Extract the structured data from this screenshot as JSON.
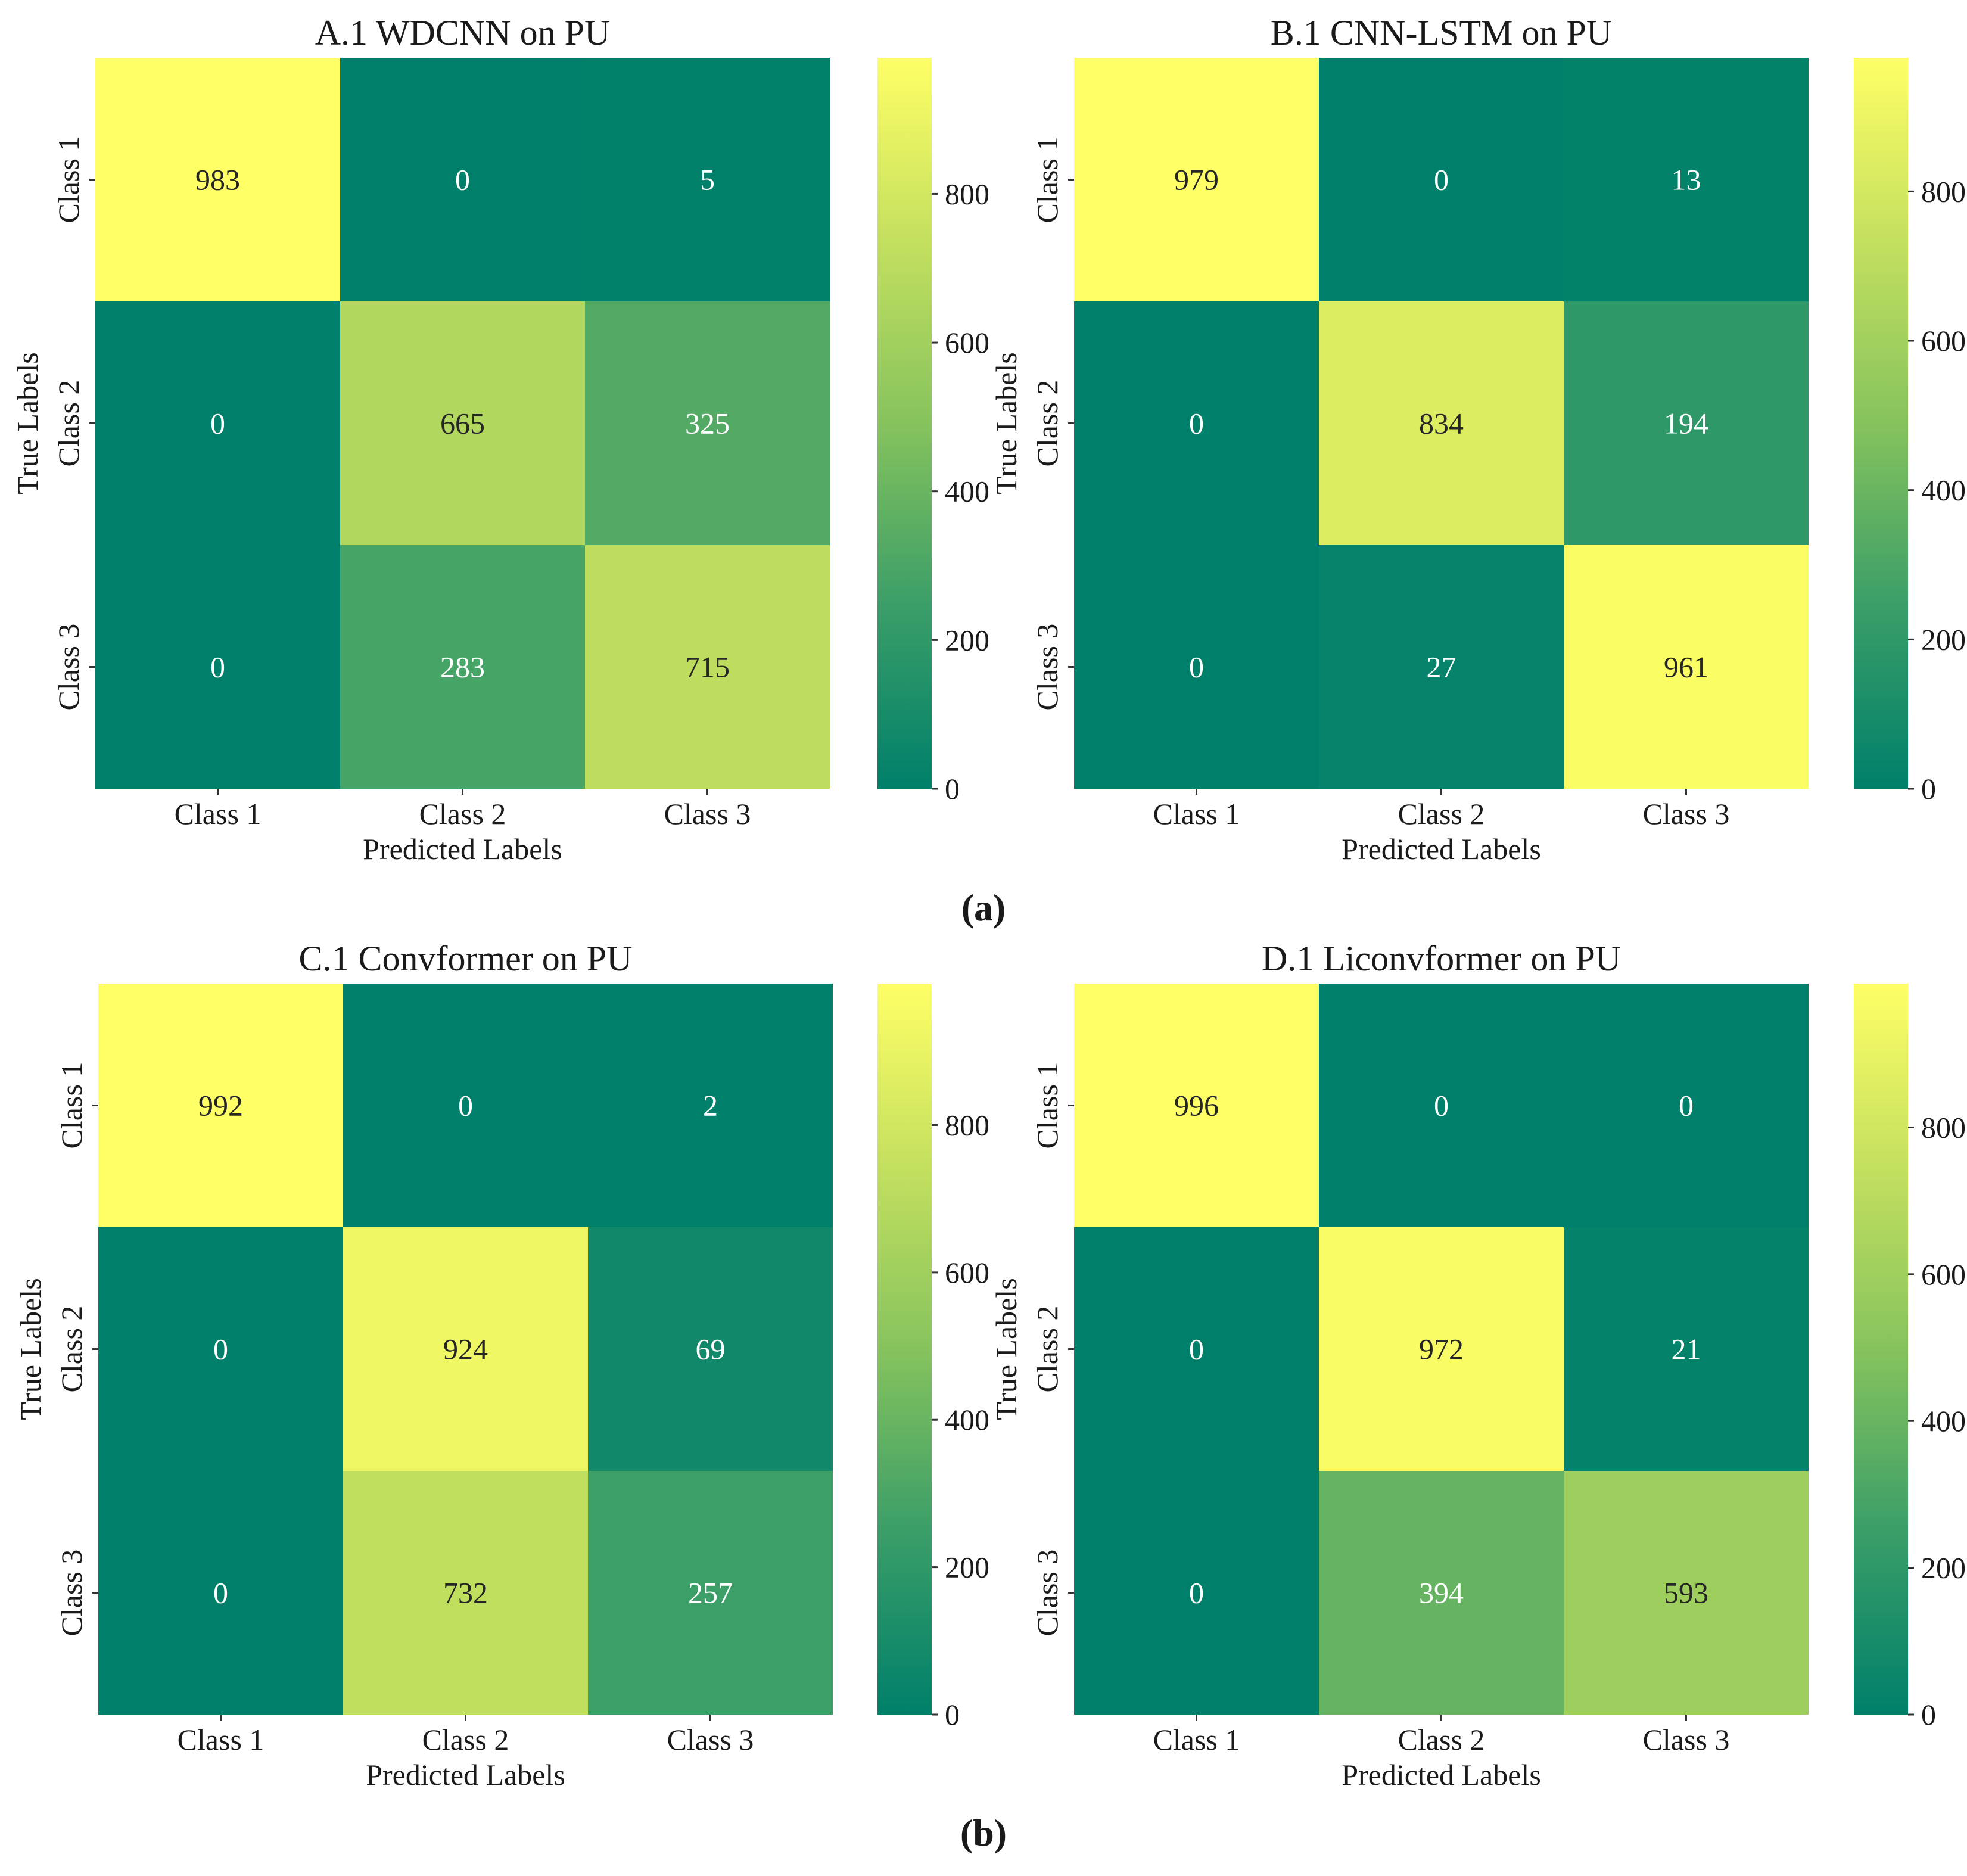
{
  "figure": {
    "panel_labels": [
      "(a)",
      "(b)"
    ]
  },
  "chart_data": [
    {
      "type": "heatmap",
      "title": "A.1 WDCNN on PU",
      "xlabel": "Predicted Labels",
      "ylabel": "True Labels",
      "x_categories": [
        "Class 1",
        "Class 2",
        "Class 3"
      ],
      "y_categories": [
        "Class 1",
        "Class 2",
        "Class 3"
      ],
      "matrix": [
        [
          983,
          0,
          5
        ],
        [
          0,
          665,
          325
        ],
        [
          0,
          283,
          715
        ]
      ],
      "colorbar": {
        "range": [
          0,
          983
        ],
        "ticks": [
          0,
          200,
          400,
          600,
          800
        ]
      },
      "colormap": [
        "#00806a",
        "#3a9e68",
        "#86c35d",
        "#c4e05f",
        "#ffff66"
      ]
    },
    {
      "type": "heatmap",
      "title": "B.1 CNN-LSTM on PU",
      "xlabel": "Predicted Labels",
      "ylabel": "True Labels",
      "x_categories": [
        "Class 1",
        "Class 2",
        "Class 3"
      ],
      "y_categories": [
        "Class 1",
        "Class 2",
        "Class 3"
      ],
      "matrix": [
        [
          979,
          0,
          13
        ],
        [
          0,
          834,
          194
        ],
        [
          0,
          27,
          961
        ]
      ],
      "colorbar": {
        "range": [
          0,
          979
        ],
        "ticks": [
          0,
          200,
          400,
          600,
          800
        ]
      },
      "colormap": [
        "#00806a",
        "#3a9e68",
        "#86c35d",
        "#c4e05f",
        "#ffff66"
      ]
    },
    {
      "type": "heatmap",
      "title": "C.1 Convformer on PU",
      "xlabel": "Predicted Labels",
      "ylabel": "True Labels",
      "x_categories": [
        "Class 1",
        "Class 2",
        "Class 3"
      ],
      "y_categories": [
        "Class 1",
        "Class 2",
        "Class 3"
      ],
      "matrix": [
        [
          992,
          0,
          2
        ],
        [
          0,
          924,
          69
        ],
        [
          0,
          732,
          257
        ]
      ],
      "colorbar": {
        "range": [
          0,
          992
        ],
        "ticks": [
          0,
          200,
          400,
          600,
          800
        ]
      },
      "colormap": [
        "#00806a",
        "#3a9e68",
        "#86c35d",
        "#c4e05f",
        "#ffff66"
      ]
    },
    {
      "type": "heatmap",
      "title": "D.1 Liconvformer on PU",
      "xlabel": "Predicted Labels",
      "ylabel": "True Labels",
      "x_categories": [
        "Class 1",
        "Class 2",
        "Class 3"
      ],
      "y_categories": [
        "Class 1",
        "Class 2",
        "Class 3"
      ],
      "matrix": [
        [
          996,
          0,
          0
        ],
        [
          0,
          972,
          21
        ],
        [
          0,
          394,
          593
        ]
      ],
      "colorbar": {
        "range": [
          0,
          996
        ],
        "ticks": [
          0,
          200,
          400,
          600,
          800
        ]
      },
      "colormap": [
        "#00806a",
        "#3a9e68",
        "#86c35d",
        "#c4e05f",
        "#ffff66"
      ]
    }
  ]
}
